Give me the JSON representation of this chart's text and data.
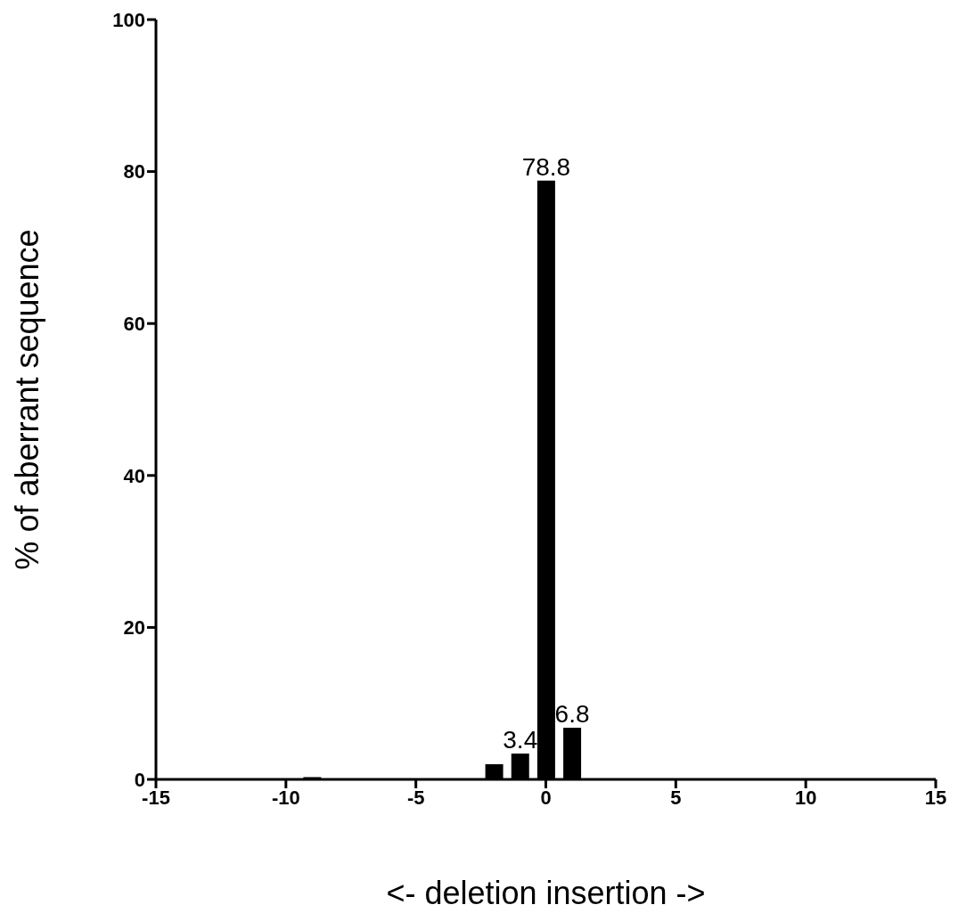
{
  "chart_data": {
    "type": "bar",
    "xlabel": "<- deletion     insertion ->",
    "ylabel": "% of aberrant sequence",
    "x": [
      -9,
      -2,
      -1,
      0,
      1
    ],
    "values": [
      0.3,
      2.0,
      3.4,
      78.8,
      6.8
    ],
    "value_labels": [
      null,
      null,
      "3.4",
      "78.8",
      "6.8"
    ],
    "color": "#000000",
    "xlim": [
      -15,
      15
    ],
    "xticks": [
      -15,
      -10,
      -5,
      0,
      5,
      10,
      15
    ],
    "ylim": [
      0,
      100
    ],
    "yticks": [
      0,
      20,
      40,
      60,
      80,
      100
    ]
  }
}
